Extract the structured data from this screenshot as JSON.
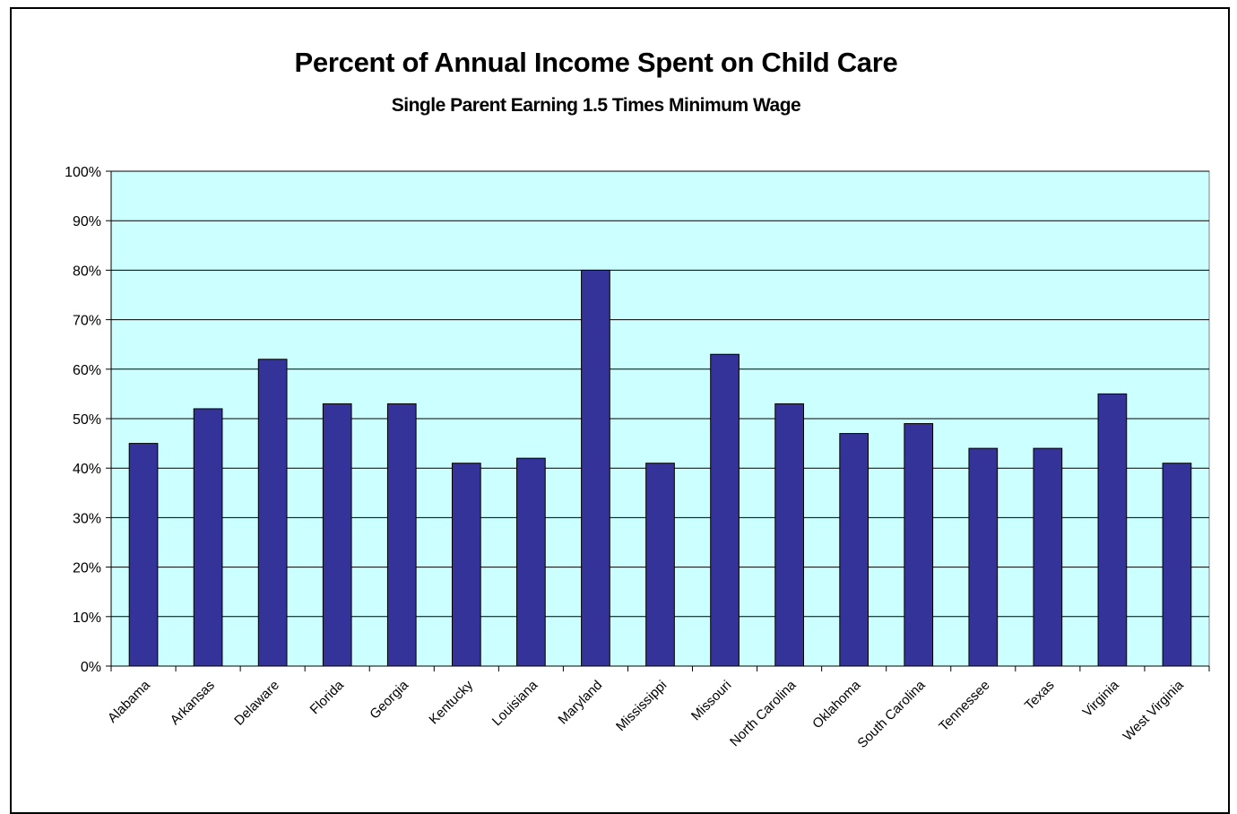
{
  "chart_data": {
    "type": "bar",
    "title": "Percent of Annual Income Spent on Child Care",
    "subtitle": "Single Parent Earning 1.5 Times Minimum Wage",
    "xlabel": "",
    "ylabel": "",
    "ylim": [
      0,
      100
    ],
    "y_ticks": [
      "0%",
      "10%",
      "20%",
      "30%",
      "40%",
      "50%",
      "60%",
      "70%",
      "80%",
      "90%",
      "100%"
    ],
    "grid": true,
    "legend": "none",
    "categories": [
      "Alabama",
      "Arkansas",
      "Delaware",
      "Florida",
      "Georgia",
      "Kentucky",
      "Louisiana",
      "Maryland",
      "Mississippi",
      "Missouri",
      "North Carolina",
      "Oklahoma",
      "South Carolina",
      "Tennessee",
      "Texas",
      "Virginia",
      "West Virginia"
    ],
    "values": [
      45,
      52,
      62,
      53,
      53,
      41,
      42,
      80,
      41,
      63,
      53,
      47,
      49,
      44,
      44,
      55,
      41
    ],
    "colors": {
      "bar": "#333399",
      "plot_background": "#ccffff",
      "gridline": "#000000"
    }
  }
}
